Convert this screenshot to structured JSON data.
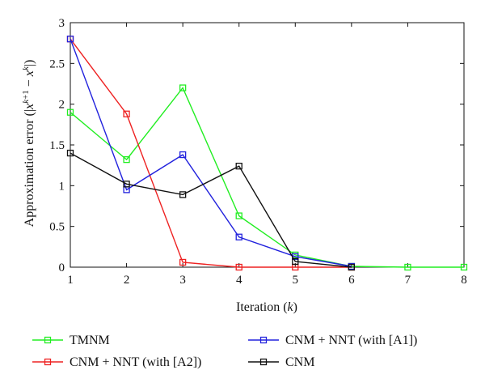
{
  "chart_data": {
    "type": "line",
    "title": "",
    "xlabel": "Iteration (k)",
    "ylabel": "Approximation error (|x^{k+1} − x^{k}|)",
    "xlim": [
      1,
      8
    ],
    "ylim": [
      0,
      3
    ],
    "xticks": [
      1,
      2,
      3,
      4,
      5,
      6,
      7,
      8
    ],
    "yticks": [
      0,
      0.5,
      1,
      1.5,
      2,
      2.5,
      3
    ],
    "ytick_labels": [
      "0",
      "0.5",
      "1",
      "1.5",
      "2",
      "2.5",
      "3"
    ],
    "grid": false,
    "legend_position": "below",
    "x": [
      1,
      2,
      3,
      4,
      5,
      6,
      7,
      8
    ],
    "series": [
      {
        "name": "TMNM",
        "color": "#22ee22",
        "marker": "square",
        "values": [
          1.9,
          1.32,
          2.2,
          0.63,
          0.15,
          0.01,
          0.0,
          0.0
        ]
      },
      {
        "name": "CNM + NNT (with [A2])",
        "color": "#ee2222",
        "marker": "square",
        "values": [
          2.8,
          1.88,
          0.06,
          0.0,
          0.0,
          0.0,
          null,
          null
        ]
      },
      {
        "name": "CNM + NNT (with [A1])",
        "color": "#2222dd",
        "marker": "square",
        "values": [
          2.8,
          0.95,
          1.38,
          0.37,
          0.13,
          0.01,
          null,
          null
        ]
      },
      {
        "name": "CNM",
        "color": "#111111",
        "marker": "square",
        "values": [
          1.4,
          1.02,
          0.89,
          1.24,
          0.07,
          0.0,
          null,
          null
        ]
      }
    ]
  }
}
